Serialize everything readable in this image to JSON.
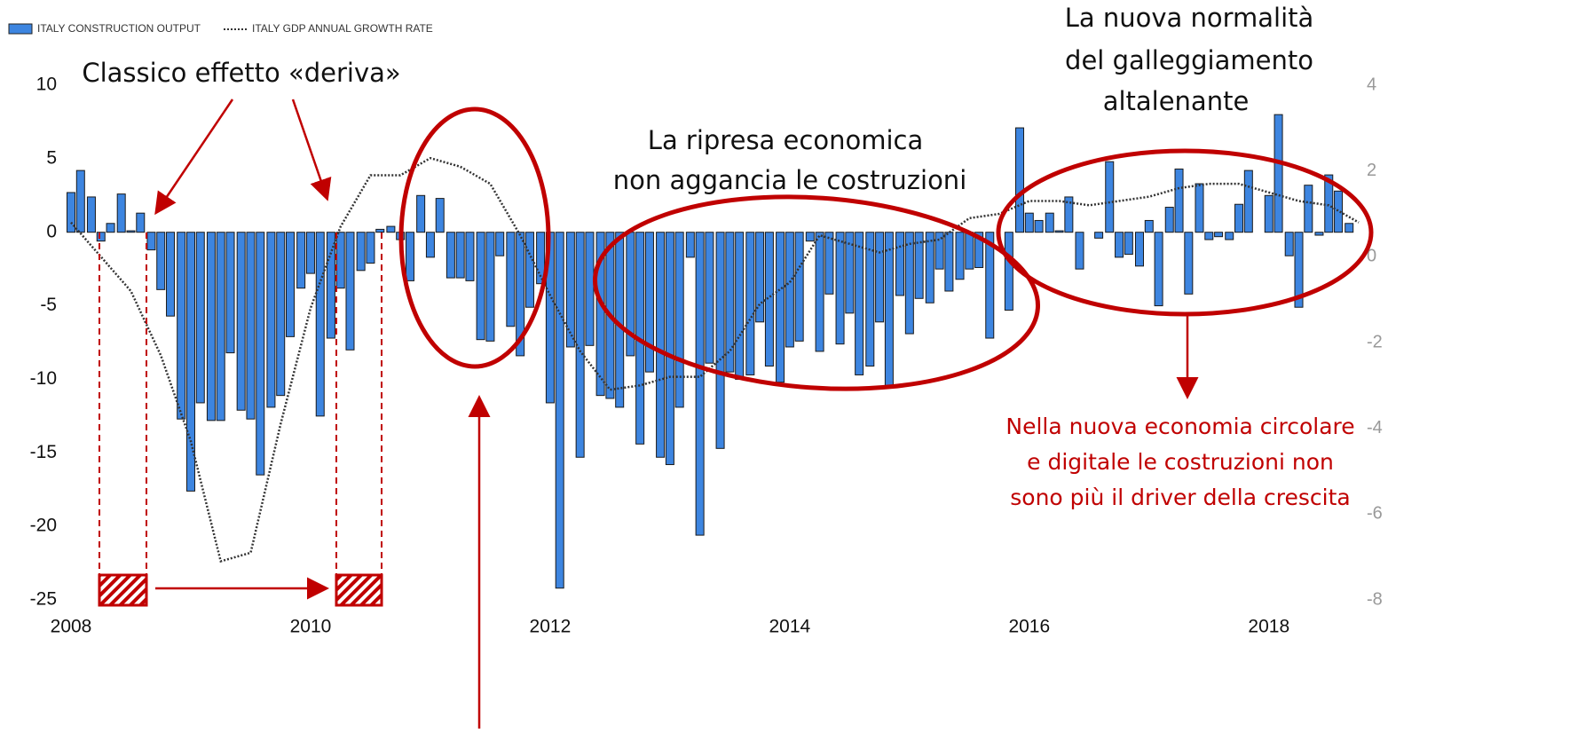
{
  "chart_data": {
    "type": "bar",
    "legend": [
      "ITALY CONSTRUCTION OUTPUT",
      "ITALY GDP ANNUAL GROWTH RATE"
    ],
    "annotations": [
      {
        "lines": [
          "Classico effetto «deriva»"
        ]
      },
      {
        "lines": [
          "La nuova normalità",
          "del galleggiamento",
          "altalenante"
        ]
      },
      {
        "lines": [
          "La ripresa economica",
          "non aggancia le costruzioni"
        ]
      },
      {
        "lines": [
          "Nella nuova economia circolare",
          "e digitale le costruzioni non",
          "sono più il driver della crescita"
        ]
      }
    ],
    "xlim": [
      2008,
      2018.75
    ],
    "xticks": [
      2008,
      2010,
      2012,
      2014,
      2016,
      2018
    ],
    "ylim": [
      -25,
      10
    ],
    "yticks": [
      10,
      5,
      0,
      -5,
      -10,
      -15,
      -20,
      -25
    ],
    "y2lim": [
      -8,
      4
    ],
    "y2ticks": [
      4,
      2,
      0,
      -2,
      -4,
      -6,
      -8
    ],
    "grid": true,
    "series": [
      {
        "name": "ITALY CONSTRUCTION OUTPUT",
        "type": "bar",
        "color": "#3d85e0",
        "x": [
          2008.0,
          2008.08,
          2008.17,
          2008.25,
          2008.33,
          2008.42,
          2008.5,
          2008.58,
          2008.67,
          2008.75,
          2008.83,
          2008.92,
          2009.0,
          2009.08,
          2009.17,
          2009.25,
          2009.33,
          2009.42,
          2009.5,
          2009.58,
          2009.67,
          2009.75,
          2009.83,
          2009.92,
          2010.0,
          2010.08,
          2010.17,
          2010.25,
          2010.33,
          2010.42,
          2010.5,
          2010.58,
          2010.67,
          2010.75,
          2010.83,
          2010.92,
          2011.0,
          2011.08,
          2011.17,
          2011.25,
          2011.33,
          2011.42,
          2011.5,
          2011.58,
          2011.67,
          2011.75,
          2011.83,
          2011.92,
          2012.0,
          2012.08,
          2012.17,
          2012.25,
          2012.33,
          2012.42,
          2012.5,
          2012.58,
          2012.67,
          2012.75,
          2012.83,
          2012.92,
          2013.0,
          2013.08,
          2013.17,
          2013.25,
          2013.33,
          2013.42,
          2013.5,
          2013.58,
          2013.67,
          2013.75,
          2013.83,
          2013.92,
          2014.0,
          2014.08,
          2014.17,
          2014.25,
          2014.33,
          2014.42,
          2014.5,
          2014.58,
          2014.67,
          2014.75,
          2014.83,
          2014.92,
          2015.0,
          2015.08,
          2015.17,
          2015.25,
          2015.33,
          2015.42,
          2015.5,
          2015.58,
          2015.67,
          2015.75,
          2015.83,
          2015.92,
          2016.0,
          2016.08,
          2016.17,
          2016.25,
          2016.33,
          2016.42,
          2016.5,
          2016.58,
          2016.67,
          2016.75,
          2016.83,
          2016.92,
          2017.0,
          2017.08,
          2017.17,
          2017.25,
          2017.33,
          2017.42,
          2017.5,
          2017.58,
          2017.67,
          2017.75,
          2017.83,
          2017.92,
          2018.0,
          2018.08,
          2018.17,
          2018.25,
          2018.33,
          2018.42,
          2018.5,
          2018.58,
          2018.67
        ],
        "values": [
          2.7,
          4.2,
          2.4,
          -0.6,
          0.6,
          2.6,
          0.1,
          1.3,
          -1.2,
          -3.9,
          -5.7,
          -12.7,
          -17.6,
          -11.6,
          -12.8,
          -12.8,
          -8.2,
          -12.1,
          -12.7,
          -16.5,
          -11.9,
          -11.1,
          -7.1,
          -3.8,
          -2.8,
          -12.5,
          -7.2,
          -3.8,
          -8.0,
          -2.6,
          -2.1,
          0.2,
          0.4,
          -0.5,
          -3.3,
          2.5,
          -1.7,
          2.3,
          -3.1,
          -3.1,
          -3.3,
          -7.3,
          -7.4,
          -1.6,
          -6.4,
          -8.4,
          -5.1,
          -3.5,
          -11.6,
          -24.2,
          -7.8,
          -15.3,
          -7.7,
          -11.1,
          -11.3,
          -11.9,
          -8.4,
          -14.4,
          -9.5,
          -15.3,
          -15.8,
          -11.9,
          -1.7,
          -20.6,
          -8.9,
          -14.7,
          -9.5,
          -10.0,
          -9.7,
          -6.1,
          -9.1,
          -10.2,
          -7.8,
          -7.4,
          -0.6,
          -8.1,
          -4.2,
          -7.6,
          -5.5,
          -9.7,
          -9.1,
          -6.1,
          -10.6,
          -4.3,
          -6.9,
          -4.5,
          -4.8,
          -2.5,
          -4.0,
          -3.2,
          -2.5,
          -2.4,
          -7.2,
          0,
          -5.3,
          7.1,
          1.3,
          0.8,
          1.3,
          0.1,
          2.4,
          -2.5,
          0,
          -0.4,
          4.8,
          -1.7,
          -1.5,
          -2.3,
          0.8,
          -5.0,
          1.7,
          4.3,
          -4.2,
          3.3,
          -0.5,
          -0.3,
          -0.5,
          1.9,
          4.2,
          0,
          2.5,
          8.0,
          -1.6,
          -5.1,
          3.2,
          -0.2,
          3.9,
          2.8,
          0.6
        ]
      },
      {
        "name": "ITALY GDP ANNUAL GROWTH RATE",
        "type": "line",
        "axis": "y2",
        "color": "#333333",
        "x": [
          2008.0,
          2008.25,
          2008.5,
          2008.75,
          2009.0,
          2009.25,
          2009.5,
          2009.75,
          2010.0,
          2010.25,
          2010.5,
          2010.75,
          2011.0,
          2011.25,
          2011.5,
          2011.75,
          2012.0,
          2012.25,
          2012.5,
          2012.75,
          2013.0,
          2013.25,
          2013.5,
          2013.75,
          2014.0,
          2014.25,
          2014.5,
          2014.75,
          2015.0,
          2015.25,
          2015.5,
          2015.75,
          2016.0,
          2016.25,
          2016.5,
          2016.75,
          2017.0,
          2017.25,
          2017.5,
          2017.75,
          2018.0,
          2018.25,
          2018.5,
          2018.75
        ],
        "values": [
          0.8,
          0.0,
          -0.8,
          -2.3,
          -4.3,
          -7.1,
          -6.9,
          -3.9,
          -1.2,
          0.7,
          1.9,
          1.9,
          2.3,
          2.1,
          1.7,
          0.5,
          -0.9,
          -2.2,
          -3.1,
          -3.0,
          -2.8,
          -2.8,
          -2.2,
          -1.1,
          -0.6,
          0.5,
          0.3,
          0.1,
          0.3,
          0.4,
          0.9,
          1.0,
          1.3,
          1.3,
          1.2,
          1.3,
          1.4,
          1.6,
          1.7,
          1.7,
          1.5,
          1.3,
          1.2,
          0.8
        ]
      }
    ]
  }
}
